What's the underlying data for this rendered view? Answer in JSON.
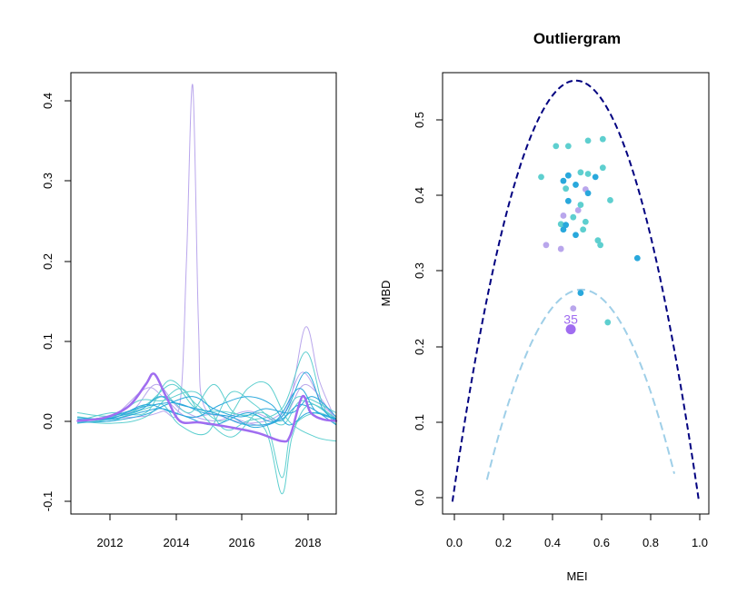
{
  "chart_data": [
    {
      "type": "line",
      "title": "",
      "xlabel": "",
      "ylabel": "",
      "xlim": [
        2010.8,
        2018.6
      ],
      "ylim": [
        -0.115,
        0.43
      ],
      "xticks": [
        2012,
        2014,
        2016,
        2018
      ],
      "xtick_labels": [
        "2012",
        "2014",
        "2016",
        "2018"
      ],
      "yticks": [
        -0.1,
        0.0,
        0.1,
        0.2,
        0.3,
        0.4
      ],
      "ytick_labels": [
        "-0.1",
        "0.0",
        "0.1",
        "0.2",
        "0.3",
        "0.4"
      ],
      "grid": false,
      "colors": {
        "teal": "#5ecfcf",
        "blue": "#29a8dc",
        "lavender": "#b9a6ec",
        "highlight": "#a06df0"
      },
      "series": [
        {
          "color": "#b9a6ec",
          "lw": 1,
          "points": [
            [
              2011.0,
              0.0
            ],
            [
              2012.0,
              0.003
            ],
            [
              2013.0,
              0.006
            ],
            [
              2013.5,
              0.012
            ],
            [
              2014.0,
              0.02
            ],
            [
              2014.2,
              0.2
            ],
            [
              2014.38,
              0.415
            ],
            [
              2014.55,
              0.12
            ],
            [
              2014.7,
              0.02
            ],
            [
              2015.5,
              0.005
            ],
            [
              2016.5,
              -0.005
            ],
            [
              2017.2,
              0.02
            ],
            [
              2017.7,
              0.116
            ],
            [
              2018.1,
              0.05
            ],
            [
              2018.6,
              0.0
            ]
          ]
        },
        {
          "color": "#b9a6ec",
          "lw": 1,
          "points": [
            [
              2011.0,
              0.002
            ],
            [
              2012.0,
              0.005
            ],
            [
              2013.0,
              0.04
            ],
            [
              2013.5,
              0.03
            ],
            [
              2014.2,
              0.005
            ],
            [
              2015.0,
              0.008
            ],
            [
              2016.0,
              -0.003
            ],
            [
              2017.0,
              0.01
            ],
            [
              2017.6,
              0.06
            ],
            [
              2018.2,
              0.02
            ],
            [
              2018.6,
              0.005
            ]
          ]
        },
        {
          "color": "#b9a6ec",
          "lw": 1,
          "points": [
            [
              2011.0,
              0.0
            ],
            [
              2012.5,
              0.01
            ],
            [
              2013.3,
              0.045
            ],
            [
              2014.0,
              0.015
            ],
            [
              2015.0,
              0.0
            ],
            [
              2016.0,
              0.012
            ],
            [
              2017.0,
              0.002
            ],
            [
              2017.7,
              0.045
            ],
            [
              2018.6,
              0.0
            ]
          ]
        },
        {
          "color": "#5ecfcf",
          "lw": 1,
          "points": [
            [
              2011.0,
              0.01
            ],
            [
              2012.0,
              0.006
            ],
            [
              2013.0,
              0.02
            ],
            [
              2013.8,
              0.045
            ],
            [
              2014.5,
              0.015
            ],
            [
              2015.5,
              0.01
            ],
            [
              2016.5,
              -0.01
            ],
            [
              2017.0,
              -0.09
            ],
            [
              2017.3,
              -0.02
            ],
            [
              2017.8,
              0.02
            ],
            [
              2018.6,
              0.003
            ]
          ]
        },
        {
          "color": "#5ecfcf",
          "lw": 1,
          "points": [
            [
              2011.0,
              0.005
            ],
            [
              2012.0,
              0.0
            ],
            [
              2013.0,
              0.02
            ],
            [
              2013.6,
              0.03
            ],
            [
              2014.3,
              0.01
            ],
            [
              2015.0,
              0.045
            ],
            [
              2015.6,
              0.01
            ],
            [
              2016.5,
              0.0
            ],
            [
              2017.0,
              -0.07
            ],
            [
              2017.3,
              -0.01
            ],
            [
              2018.0,
              0.01
            ],
            [
              2018.6,
              0.0
            ]
          ]
        },
        {
          "color": "#5ecfcf",
          "lw": 1,
          "points": [
            [
              2011.0,
              -0.003
            ],
            [
              2012.0,
              0.004
            ],
            [
              2012.8,
              0.025
            ],
            [
              2013.5,
              0.025
            ],
            [
              2014.5,
              0.035
            ],
            [
              2015.3,
              -0.01
            ],
            [
              2016.0,
              0.0
            ],
            [
              2017.0,
              0.015
            ],
            [
              2017.7,
              0.085
            ],
            [
              2018.2,
              0.02
            ],
            [
              2018.6,
              -0.005
            ]
          ]
        },
        {
          "color": "#5ecfcf",
          "lw": 1,
          "points": [
            [
              2011.0,
              0.0
            ],
            [
              2012.0,
              0.01
            ],
            [
              2013.0,
              0.01
            ],
            [
              2013.7,
              0.05
            ],
            [
              2014.5,
              0.02
            ],
            [
              2015.3,
              0.0
            ],
            [
              2016.0,
              0.04
            ],
            [
              2016.6,
              0.045
            ],
            [
              2017.2,
              0.0
            ],
            [
              2018.0,
              -0.02
            ],
            [
              2018.6,
              -0.025
            ]
          ]
        },
        {
          "color": "#5ecfcf",
          "lw": 1,
          "points": [
            [
              2011.0,
              0.005
            ],
            [
              2012.0,
              0.002
            ],
            [
              2013.0,
              0.015
            ],
            [
              2013.5,
              0.02
            ],
            [
              2014.0,
              -0.005
            ],
            [
              2014.8,
              -0.015
            ],
            [
              2015.5,
              0.035
            ],
            [
              2016.2,
              0.02
            ],
            [
              2017.0,
              -0.005
            ],
            [
              2017.6,
              0.025
            ],
            [
              2018.6,
              0.002
            ]
          ]
        },
        {
          "color": "#5ecfcf",
          "lw": 1,
          "points": [
            [
              2011.0,
              0.0
            ],
            [
              2012.0,
              -0.003
            ],
            [
              2013.0,
              0.005
            ],
            [
              2014.0,
              0.04
            ],
            [
              2014.6,
              0.01
            ],
            [
              2015.5,
              -0.02
            ],
            [
              2016.3,
              0.01
            ],
            [
              2017.0,
              0.0
            ],
            [
              2017.5,
              0.03
            ],
            [
              2018.6,
              0.01
            ]
          ]
        },
        {
          "color": "#29a8dc",
          "lw": 1,
          "points": [
            [
              2011.0,
              0.0
            ],
            [
              2012.0,
              0.004
            ],
            [
              2012.9,
              0.015
            ],
            [
              2013.4,
              0.03
            ],
            [
              2014.0,
              0.02
            ],
            [
              2015.0,
              0.01
            ],
            [
              2016.0,
              -0.005
            ],
            [
              2017.0,
              0.005
            ],
            [
              2017.7,
              0.06
            ],
            [
              2018.2,
              0.015
            ],
            [
              2018.6,
              0.0
            ]
          ]
        },
        {
          "color": "#29a8dc",
          "lw": 1,
          "points": [
            [
              2011.0,
              0.004
            ],
            [
              2012.0,
              0.003
            ],
            [
              2013.0,
              0.02
            ],
            [
              2013.8,
              0.01
            ],
            [
              2014.5,
              0.005
            ],
            [
              2015.2,
              0.02
            ],
            [
              2016.0,
              0.03
            ],
            [
              2016.7,
              0.02
            ],
            [
              2017.2,
              -0.005
            ],
            [
              2017.8,
              0.01
            ],
            [
              2018.6,
              0.003
            ]
          ]
        },
        {
          "color": "#29a8dc",
          "lw": 1,
          "points": [
            [
              2011.0,
              -0.002
            ],
            [
              2012.0,
              0.0
            ],
            [
              2013.0,
              0.008
            ],
            [
              2013.6,
              0.02
            ],
            [
              2014.4,
              0.03
            ],
            [
              2015.0,
              0.015
            ],
            [
              2015.8,
              0.005
            ],
            [
              2016.5,
              0.015
            ],
            [
              2017.3,
              0.01
            ],
            [
              2017.9,
              0.03
            ],
            [
              2018.6,
              0.005
            ]
          ]
        },
        {
          "color": "#29a8dc",
          "lw": 1,
          "points": [
            [
              2011.0,
              0.002
            ],
            [
              2012.0,
              0.002
            ],
            [
              2013.0,
              0.012
            ],
            [
              2013.5,
              0.015
            ],
            [
              2014.2,
              0.005
            ],
            [
              2015.0,
              -0.005
            ],
            [
              2016.0,
              0.01
            ],
            [
              2016.8,
              0.0
            ],
            [
              2017.5,
              0.04
            ],
            [
              2018.0,
              0.012
            ],
            [
              2018.6,
              0.002
            ]
          ]
        },
        {
          "color": "#29a8dc",
          "lw": 1,
          "points": [
            [
              2011.0,
              0.0
            ],
            [
              2012.0,
              0.006
            ],
            [
              2013.0,
              0.018
            ],
            [
              2013.9,
              0.022
            ],
            [
              2014.7,
              0.01
            ],
            [
              2015.5,
              0.005
            ],
            [
              2016.2,
              -0.008
            ],
            [
              2017.0,
              0.002
            ],
            [
              2017.6,
              0.02
            ],
            [
              2018.6,
              -0.005
            ]
          ]
        },
        {
          "color": "#a06df0",
          "lw": 2.5,
          "points": [
            [
              2011.0,
              0.0
            ],
            [
              2011.8,
              0.004
            ],
            [
              2012.5,
              0.018
            ],
            [
              2013.0,
              0.045
            ],
            [
              2013.25,
              0.058
            ],
            [
              2013.6,
              0.03
            ],
            [
              2014.0,
              0.0
            ],
            [
              2014.6,
              -0.002
            ],
            [
              2015.5,
              -0.008
            ],
            [
              2016.3,
              -0.015
            ],
            [
              2017.0,
              -0.025
            ],
            [
              2017.25,
              -0.018
            ],
            [
              2017.6,
              0.03
            ],
            [
              2017.85,
              0.01
            ],
            [
              2018.2,
              0.002
            ],
            [
              2018.6,
              0.0
            ]
          ]
        }
      ]
    },
    {
      "type": "scatter",
      "title": "Outliergram",
      "xlabel": "MEI",
      "ylabel": "MBD",
      "xlim": [
        -0.04,
        1.04
      ],
      "ylim": [
        -0.018,
        0.553
      ],
      "xticks": [
        0.0,
        0.2,
        0.4,
        0.6,
        0.8,
        1.0
      ],
      "xtick_labels": [
        "0.0",
        "0.2",
        "0.4",
        "0.6",
        "0.8",
        "1.0"
      ],
      "yticks": [
        0.0,
        0.1,
        0.2,
        0.3,
        0.4,
        0.5
      ],
      "ytick_labels": [
        "0.0",
        "0.1",
        "0.2",
        "0.3",
        "0.4",
        "0.5"
      ],
      "grid": false,
      "upper_parabola": {
        "a0": -0.002,
        "a1": 2.179,
        "a2": -2.179,
        "color": "#000080",
        "x_range": [
          0.0,
          1.0
        ]
      },
      "lower_parabola": {
        "a0": -0.1863,
        "a1": 1.7537,
        "a2": -1.6765,
        "color": "#9fcfe8",
        "x_range": [
          0.14,
          0.9
        ]
      },
      "points": [
        {
          "x": 0.42,
          "y": 0.458,
          "c": "#5ecfcf"
        },
        {
          "x": 0.47,
          "y": 0.458,
          "c": "#5ecfcf"
        },
        {
          "x": 0.55,
          "y": 0.465,
          "c": "#5ecfcf"
        },
        {
          "x": 0.61,
          "y": 0.467,
          "c": "#5ecfcf"
        },
        {
          "x": 0.36,
          "y": 0.418,
          "c": "#5ecfcf"
        },
        {
          "x": 0.45,
          "y": 0.413,
          "c": "#29a8dc"
        },
        {
          "x": 0.47,
          "y": 0.42,
          "c": "#29a8dc"
        },
        {
          "x": 0.52,
          "y": 0.424,
          "c": "#5ecfcf"
        },
        {
          "x": 0.55,
          "y": 0.422,
          "c": "#5ecfcf"
        },
        {
          "x": 0.58,
          "y": 0.418,
          "c": "#29a8dc"
        },
        {
          "x": 0.61,
          "y": 0.43,
          "c": "#5ecfcf"
        },
        {
          "x": 0.46,
          "y": 0.403,
          "c": "#5ecfcf"
        },
        {
          "x": 0.5,
          "y": 0.408,
          "c": "#29a8dc"
        },
        {
          "x": 0.54,
          "y": 0.402,
          "c": "#b9a6ec"
        },
        {
          "x": 0.55,
          "y": 0.397,
          "c": "#29a8dc"
        },
        {
          "x": 0.64,
          "y": 0.388,
          "c": "#5ecfcf"
        },
        {
          "x": 0.47,
          "y": 0.387,
          "c": "#29a8dc"
        },
        {
          "x": 0.51,
          "y": 0.375,
          "c": "#b9a6ec"
        },
        {
          "x": 0.52,
          "y": 0.382,
          "c": "#5ecfcf"
        },
        {
          "x": 0.45,
          "y": 0.368,
          "c": "#b9a6ec"
        },
        {
          "x": 0.49,
          "y": 0.366,
          "c": "#5ecfcf"
        },
        {
          "x": 0.44,
          "y": 0.357,
          "c": "#5ecfcf"
        },
        {
          "x": 0.45,
          "y": 0.35,
          "c": "#29a8dc"
        },
        {
          "x": 0.46,
          "y": 0.356,
          "c": "#29a8dc"
        },
        {
          "x": 0.53,
          "y": 0.35,
          "c": "#5ecfcf"
        },
        {
          "x": 0.54,
          "y": 0.36,
          "c": "#5ecfcf"
        },
        {
          "x": 0.5,
          "y": 0.343,
          "c": "#29a8dc"
        },
        {
          "x": 0.59,
          "y": 0.336,
          "c": "#5ecfcf"
        },
        {
          "x": 0.6,
          "y": 0.33,
          "c": "#5ecfcf"
        },
        {
          "x": 0.38,
          "y": 0.33,
          "c": "#b9a6ec"
        },
        {
          "x": 0.44,
          "y": 0.325,
          "c": "#b9a6ec"
        },
        {
          "x": 0.75,
          "y": 0.313,
          "c": "#29a8dc"
        },
        {
          "x": 0.52,
          "y": 0.268,
          "c": "#29a8dc"
        },
        {
          "x": 0.49,
          "y": 0.248,
          "c": "#b9a6ec"
        },
        {
          "x": 0.63,
          "y": 0.23,
          "c": "#5ecfcf"
        }
      ],
      "outlier": {
        "x": 0.48,
        "y": 0.221,
        "label": "35",
        "color": "#a06df0"
      }
    }
  ]
}
